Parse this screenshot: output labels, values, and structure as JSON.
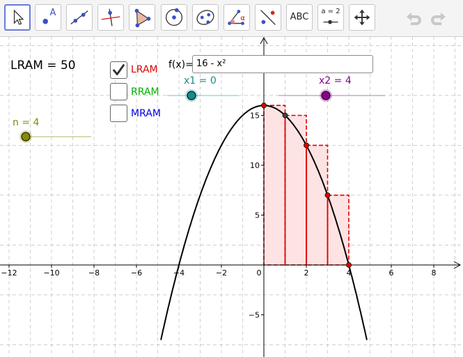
{
  "toolbar": {
    "tools": [
      {
        "name": "move-tool",
        "label": ""
      },
      {
        "name": "point-tool",
        "label": "A"
      },
      {
        "name": "line-tool",
        "label": ""
      },
      {
        "name": "perpendicular-line-tool",
        "label": ""
      },
      {
        "name": "polygon-tool",
        "label": ""
      },
      {
        "name": "circle-tool",
        "label": ""
      },
      {
        "name": "conic-tool",
        "label": ""
      },
      {
        "name": "angle-tool",
        "label": "α"
      },
      {
        "name": "reflect-tool",
        "label": ""
      },
      {
        "name": "text-tool",
        "label": "ABC"
      },
      {
        "name": "slider-tool",
        "label": "a = 2"
      },
      {
        "name": "move-graphics-view-tool",
        "label": ""
      }
    ]
  },
  "lram_display": {
    "text": "LRAM  =  50"
  },
  "checkboxes": [
    {
      "label": "LRAM",
      "color": "#e00000",
      "checked": true
    },
    {
      "label": "RRAM",
      "color": "#00b000",
      "checked": false
    },
    {
      "label": "MRAM",
      "color": "#0000e0",
      "checked": false
    }
  ],
  "function_input": {
    "label": "f(x)=",
    "value": "16 - x²"
  },
  "sliders": {
    "x1": {
      "label": "x1 = 0",
      "color": "#168a8c",
      "value": 0
    },
    "x2": {
      "label": "x2 = 4",
      "color": "#8b008b",
      "value": 4
    },
    "n": {
      "label": "n = 4",
      "color": "#8a8a00",
      "value": 4
    }
  },
  "axes": {
    "x_ticks": [
      "−12",
      "−10",
      "−8",
      "−6",
      "−4",
      "−2",
      "0",
      "2",
      "4",
      "6",
      "8"
    ],
    "y_ticks": [
      "15",
      "10",
      "5",
      "−5"
    ]
  },
  "colors": {
    "accent": "#6c79d8",
    "rect": "#e00000",
    "rect_fill": "#fde3e3",
    "curve": "#000000"
  }
}
